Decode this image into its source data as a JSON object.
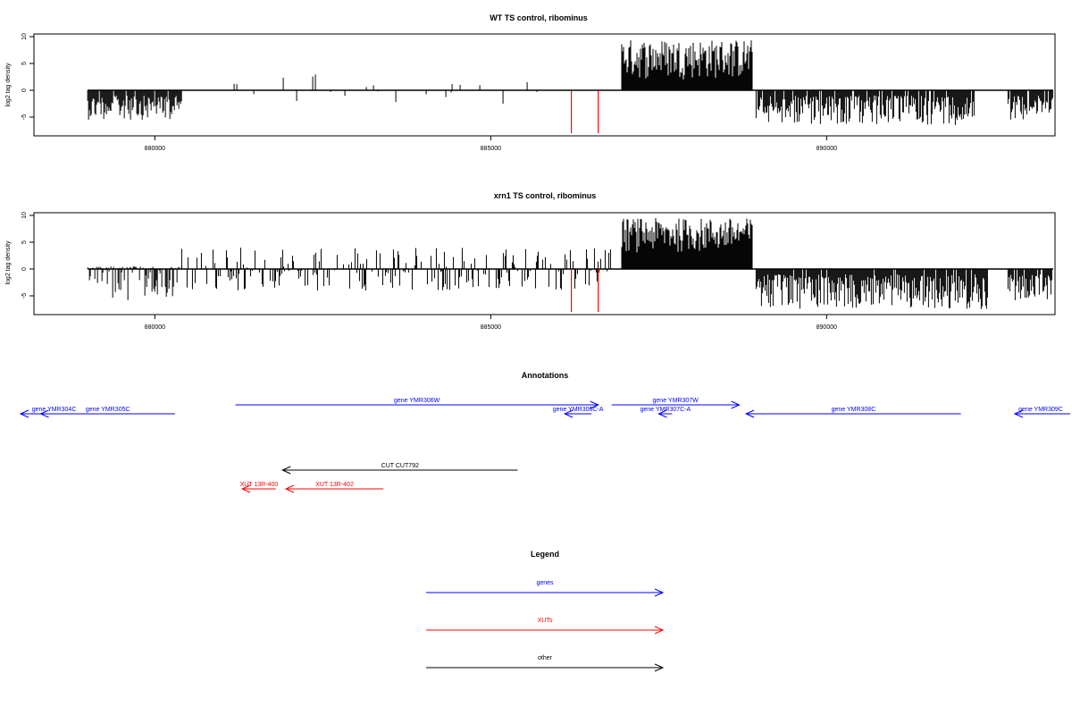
{
  "chart_data": [
    {
      "type": "bar",
      "title": "WT TS control, ribominus",
      "xlabel": "",
      "ylabel": "log2 tag density",
      "xlim": [
        878200,
        893400
      ],
      "ylim": [
        -8.5,
        10.5
      ],
      "x_ticks": [
        880000,
        885000,
        890000
      ],
      "y_ticks": [
        -5,
        0,
        5,
        10
      ],
      "x_tick_labels": [
        "880000",
        "885000",
        "890000"
      ],
      "y_tick_labels": [
        "-5",
        "0",
        "5",
        "10"
      ],
      "series": [
        {
          "segments": [
            {
              "start": 879000,
              "end": 880400,
              "min": -5.5,
              "max": 0,
              "density": 0.9
            },
            {
              "start": 881100,
              "end": 886300,
              "min": -2.5,
              "max": 3,
              "density": 0.05
            },
            {
              "start": 886950,
              "end": 888900,
              "min": 2,
              "max": 9.5,
              "density": 1.0
            },
            {
              "start": 888950,
              "end": 892200,
              "min": -6.5,
              "max": 0,
              "density": 0.9
            },
            {
              "start": 892700,
              "end": 893900,
              "min": -5.5,
              "max": 0,
              "density": 0.9
            }
          ]
        },
        {
          "name": "",
          "color": "#ff0000",
          "x": [
            886200,
            886600
          ],
          "values": [
            -8,
            -8
          ]
        }
      ]
    },
    {
      "type": "bar",
      "title": "xrn1 TS control, ribominus",
      "xlabel": "",
      "ylabel": "log2 tag density",
      "xlim": [
        878200,
        893400
      ],
      "ylim": [
        -8.5,
        10.5
      ],
      "x_ticks": [
        880000,
        885000,
        890000
      ],
      "y_ticks": [
        -5,
        0,
        5,
        10
      ],
      "x_tick_labels": [
        "880000",
        "885000",
        "890000"
      ],
      "y_tick_labels": [
        "-5",
        "0",
        "5",
        "10"
      ],
      "series": [
        {
          "segments": [
            {
              "start": 879000,
              "end": 880400,
              "min": -6,
              "max": 0.5,
              "density": 0.9
            },
            {
              "start": 880400,
              "end": 886800,
              "min": -4,
              "max": 4,
              "density": 0.45
            },
            {
              "start": 886950,
              "end": 888900,
              "min": 3,
              "max": 9.5,
              "density": 1.0
            },
            {
              "start": 888950,
              "end": 892400,
              "min": -7.5,
              "max": 0,
              "density": 0.95
            },
            {
              "start": 892700,
              "end": 893900,
              "min": -6,
              "max": 0,
              "density": 0.9
            }
          ]
        },
        {
          "name": "",
          "color": "#ff0000",
          "x": [
            886200,
            886600
          ],
          "values": [
            -8,
            -8
          ]
        }
      ]
    }
  ],
  "annotations": {
    "title": "Annotations",
    "items": [
      {
        "label": "gene YMR306W",
        "color": "#0000ff",
        "x1": 881200,
        "x2": 886600,
        "dir": "right"
      },
      {
        "label": "gene YMR307W",
        "color": "#0000ff",
        "x1": 886800,
        "x2": 888700,
        "dir": "right"
      },
      {
        "label": "gene YMR304C",
        "color": "#0000ff",
        "x1": 878000,
        "x2": 879000,
        "dir": "left"
      },
      {
        "label": "gene YMR305C",
        "color": "#0000ff",
        "x1": 878300,
        "x2": 880300,
        "dir": "left"
      },
      {
        "label": "gene YMR306C-A",
        "color": "#0000ff",
        "x1": 886100,
        "x2": 886500,
        "dir": "left"
      },
      {
        "label": "gene YMR307C-A",
        "color": "#0000ff",
        "x1": 887500,
        "x2": 887700,
        "dir": "left"
      },
      {
        "label": "gene YMR308C",
        "color": "#0000ff",
        "x1": 888800,
        "x2": 892000,
        "dir": "left"
      },
      {
        "label": "gene YMR309C",
        "color": "#0000ff",
        "x1": 892800,
        "x2": 895000,
        "dir": "left"
      },
      {
        "label": "CUT CUT792",
        "color": "#000000",
        "x1": 881900,
        "x2": 885400,
        "dir": "left"
      },
      {
        "label": "XUT 13R-400",
        "color": "#ff0000",
        "x1": 881300,
        "x2": 881800,
        "dir": "left"
      },
      {
        "label": "XUT 13R-402",
        "color": "#ff0000",
        "x1": 881950,
        "x2": 883400,
        "dir": "left"
      }
    ]
  },
  "legend": {
    "title": "Legend",
    "items": [
      {
        "label": "genes",
        "color": "#0000ff"
      },
      {
        "label": "XUTs",
        "color": "#ff0000"
      },
      {
        "label": "other",
        "color": "#000000"
      }
    ]
  }
}
